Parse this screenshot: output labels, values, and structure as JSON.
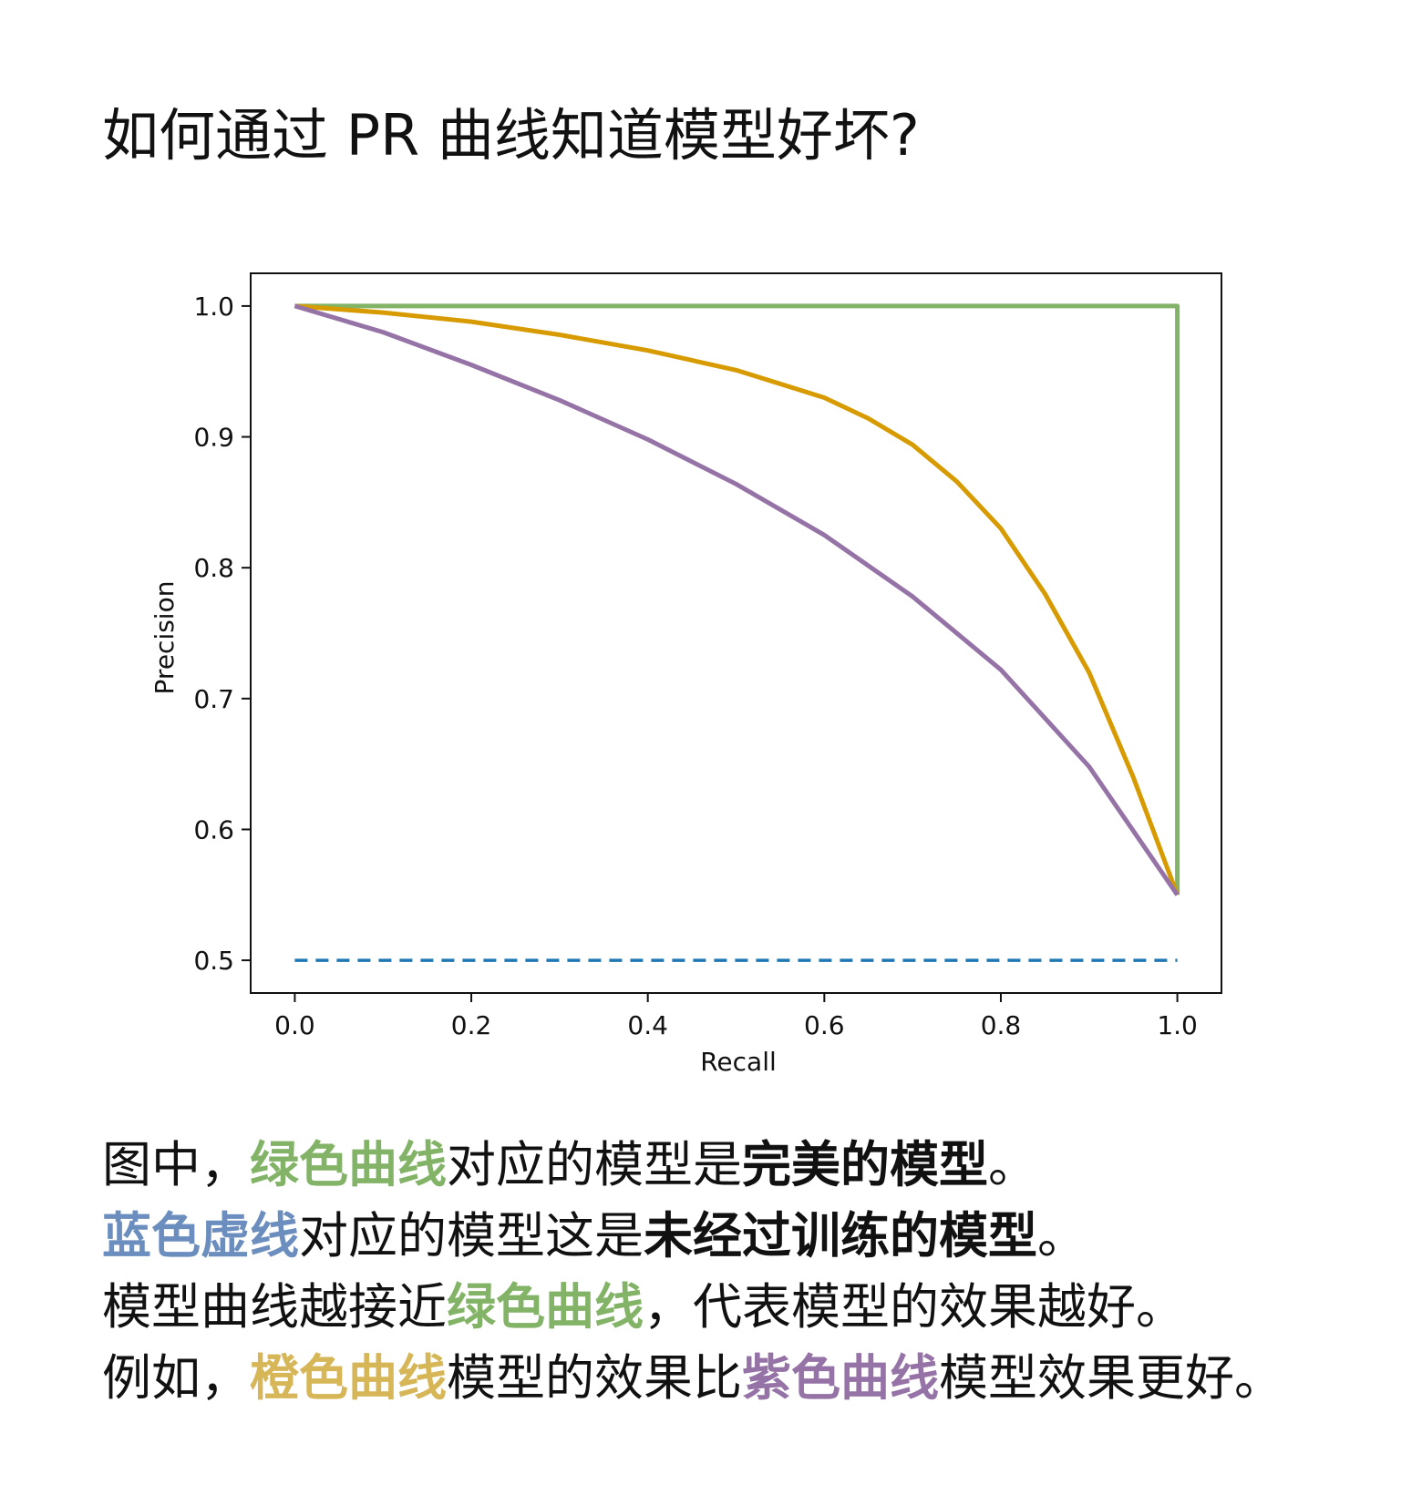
{
  "title": "如何通过 PR 曲线知道模型好坏?",
  "chart_data": {
    "type": "line",
    "xlabel": "Recall",
    "ylabel": "Precision",
    "xlim": [
      -0.05,
      1.05
    ],
    "ylim": [
      0.475,
      1.025
    ],
    "x_ticks": [
      "0.0",
      "0.2",
      "0.4",
      "0.6",
      "0.8",
      "1.0"
    ],
    "y_ticks": [
      "0.5",
      "0.6",
      "0.7",
      "0.8",
      "0.9",
      "1.0"
    ],
    "grid": false,
    "colors": {
      "green": "#82b366",
      "orange": "#d79b00",
      "purple": "#9673a6",
      "blue": "#1f77b4"
    },
    "series": [
      {
        "style": "solid",
        "color": "#82b366",
        "x": [
          0.0,
          1.0,
          1.0
        ],
        "y": [
          1.0,
          1.0,
          0.55
        ]
      },
      {
        "style": "solid",
        "color": "#d79b00",
        "x": [
          0.0,
          0.1,
          0.2,
          0.3,
          0.4,
          0.5,
          0.6,
          0.65,
          0.7,
          0.75,
          0.8,
          0.85,
          0.9,
          0.95,
          1.0
        ],
        "y": [
          1.0,
          0.995,
          0.988,
          0.978,
          0.966,
          0.951,
          0.93,
          0.914,
          0.894,
          0.866,
          0.83,
          0.78,
          0.72,
          0.64,
          0.55
        ]
      },
      {
        "style": "solid",
        "color": "#9673a6",
        "x": [
          0.0,
          0.1,
          0.2,
          0.3,
          0.4,
          0.5,
          0.6,
          0.7,
          0.8,
          0.9,
          1.0
        ],
        "y": [
          1.0,
          0.98,
          0.955,
          0.928,
          0.898,
          0.864,
          0.825,
          0.778,
          0.722,
          0.648,
          0.55
        ]
      },
      {
        "style": "dashed",
        "color": "#1f77b4",
        "x": [
          0.0,
          1.0
        ],
        "y": [
          0.5,
          0.5
        ]
      }
    ]
  },
  "explanation": {
    "line1": {
      "a": "图中，",
      "b": "绿色曲线",
      "c": "对应的模型是",
      "d": "完美的模型",
      "e": "。"
    },
    "line2": {
      "a": "蓝色虚线",
      "b": "对应的模型这是",
      "c": "未经过训练的模型",
      "d": "。"
    },
    "line3": {
      "a": "模型曲线越接近",
      "b": "绿色曲线",
      "c": "，代表模型的效果越好。"
    },
    "line4": {
      "a": "例如，",
      "b": "橙色曲线",
      "c": "模型的效果比",
      "d": "紫色曲线",
      "e": "模型效果更好。"
    }
  }
}
